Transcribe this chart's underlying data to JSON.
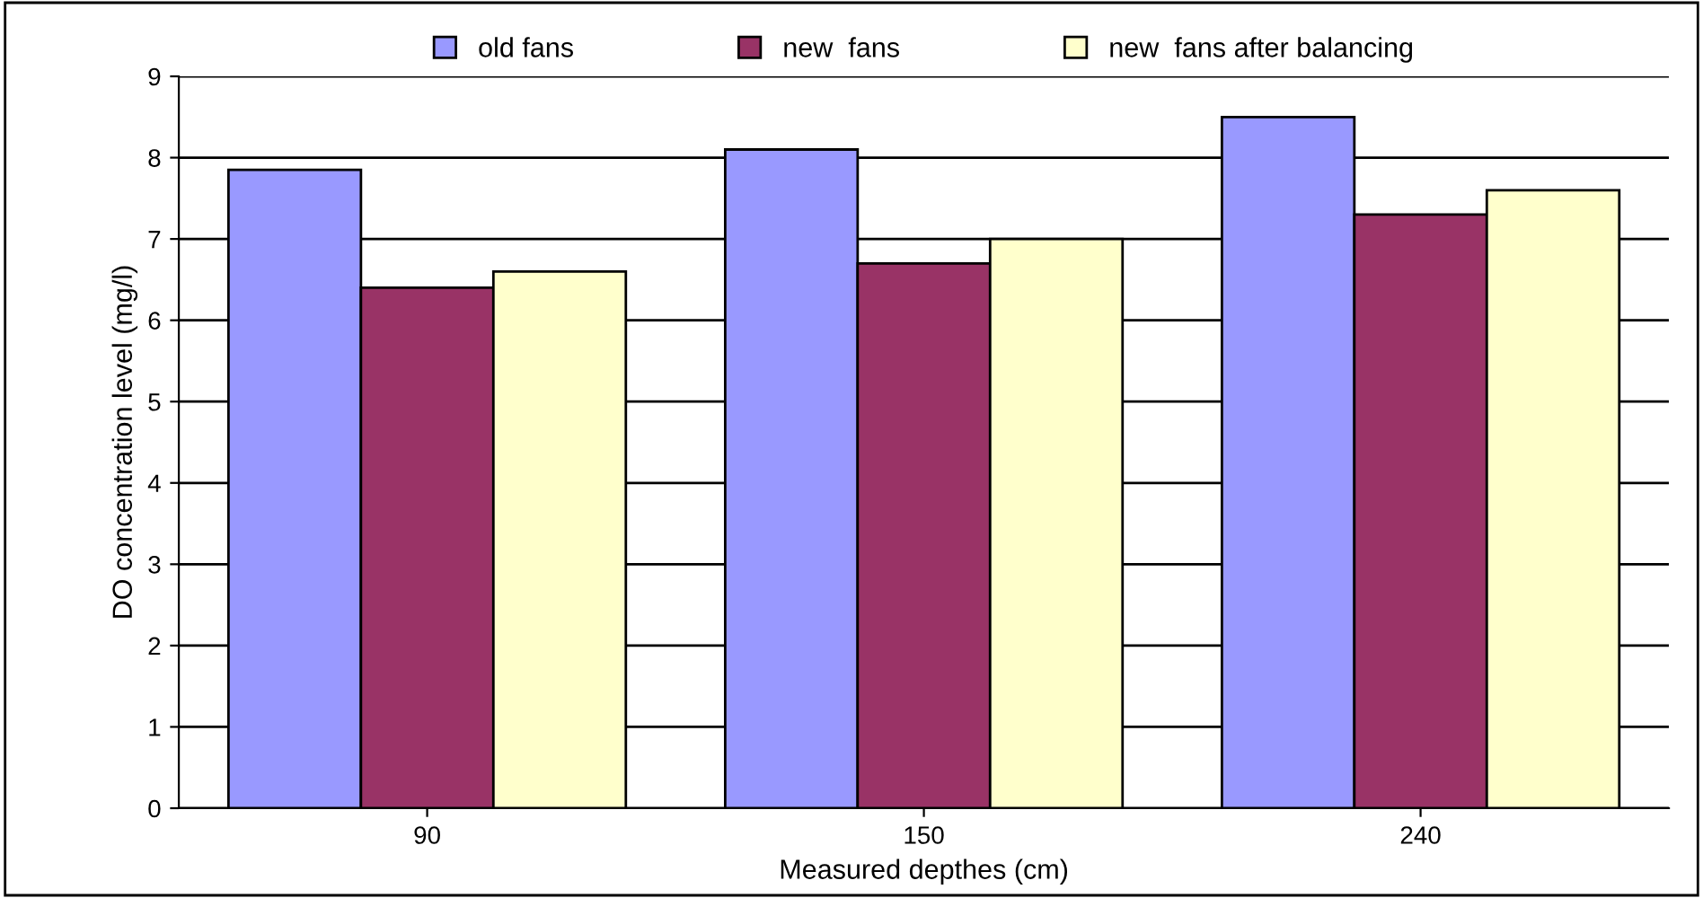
{
  "chart_data": {
    "type": "bar",
    "xlabel": "Measured depthes (cm)",
    "ylabel": "DO concentration level (mg/l)",
    "categories": [
      "90",
      "150",
      "240"
    ],
    "series": [
      {
        "name": "old fans",
        "color": "#9999ff",
        "values": [
          7.85,
          8.1,
          8.5
        ]
      },
      {
        "name": "new  fans",
        "color": "#993366",
        "values": [
          6.4,
          6.7,
          7.3
        ]
      },
      {
        "name": "new  fans after balancing",
        "color": "#ffffcc",
        "values": [
          6.6,
          7.0,
          7.6
        ]
      }
    ],
    "ylim": [
      0,
      9
    ],
    "yticks": [
      0,
      1,
      2,
      3,
      4,
      5,
      6,
      7,
      8,
      9
    ],
    "grid": "y",
    "legend": "top"
  }
}
